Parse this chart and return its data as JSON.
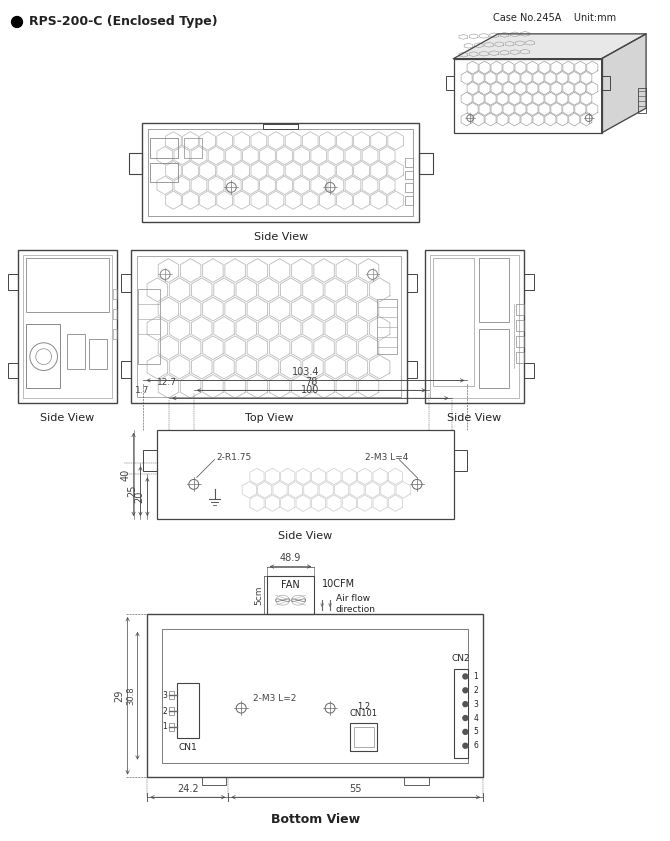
{
  "title": "RPS-200-C (Enclosed Type)",
  "case_info": "Case No.245A    Unit:mm",
  "bg_color": "#ffffff",
  "line_color": "#444444",
  "dim_color": "#444444",
  "text_color": "#222222",
  "side_view_top_label": "Side View",
  "top_view_label": "Top View",
  "side_view_left_label": "Side View",
  "side_view_right_label": "Side View",
  "side_view_dim_label": "Side View",
  "bottom_view_label": "Bottom View",
  "dim_103_4": "103.4",
  "dim_12_7": "12.7",
  "dim_78": "78",
  "dim_1_7": "1.7",
  "dim_100": "100",
  "dim_2R175": "2-R1.75",
  "dim_2M3L4": "2-M3 L=4",
  "dim_40": "40",
  "dim_25": "25",
  "dim_20": "20",
  "dim_48_9": "48.9",
  "fan_label": "FAN",
  "cfm_label": "10CFM",
  "airflow_label": "Air flow\ndirection",
  "dim_5cm": "5cm",
  "dim_29": "29",
  "dim_30_8": "30.8",
  "dim_2M3L2": "2-M3 L=2",
  "cn1_label": "CN1",
  "cn2_label": "CN2",
  "cn101_label": "CN101",
  "cn101_pins": "1.2",
  "dim_24_2": "24.2",
  "dim_55": "55"
}
